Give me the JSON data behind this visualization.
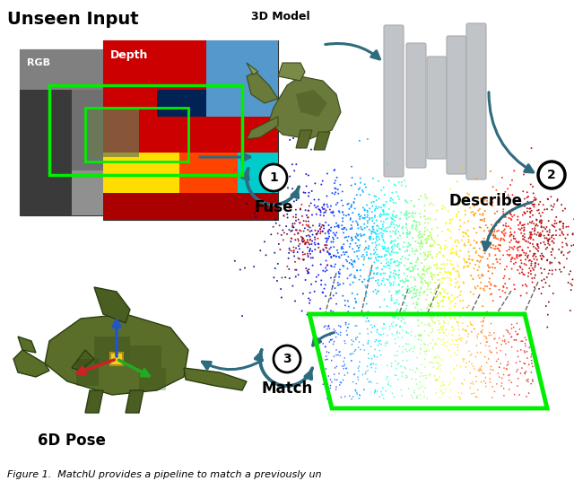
{
  "title_text": "Figure 1.  MatchU provides a pipeline to match a previously un",
  "label_unseen_input": "Unseen Input",
  "label_3d_model": "3D Model",
  "label_fuse": "Fuse",
  "label_describe": "Describe",
  "label_match": "Match",
  "label_6d_pose": "6D Pose",
  "label_rgb": "RGB",
  "label_depth": "Depth",
  "num1": "1",
  "num2": "2",
  "num3": "3",
  "bg_color": "#ffffff",
  "arrow_color": "#2e6b7e",
  "bar_color": "#c0c4c8",
  "green_box_color": "#00ee00",
  "fig_width": 6.4,
  "fig_height": 5.36,
  "dpi": 100
}
